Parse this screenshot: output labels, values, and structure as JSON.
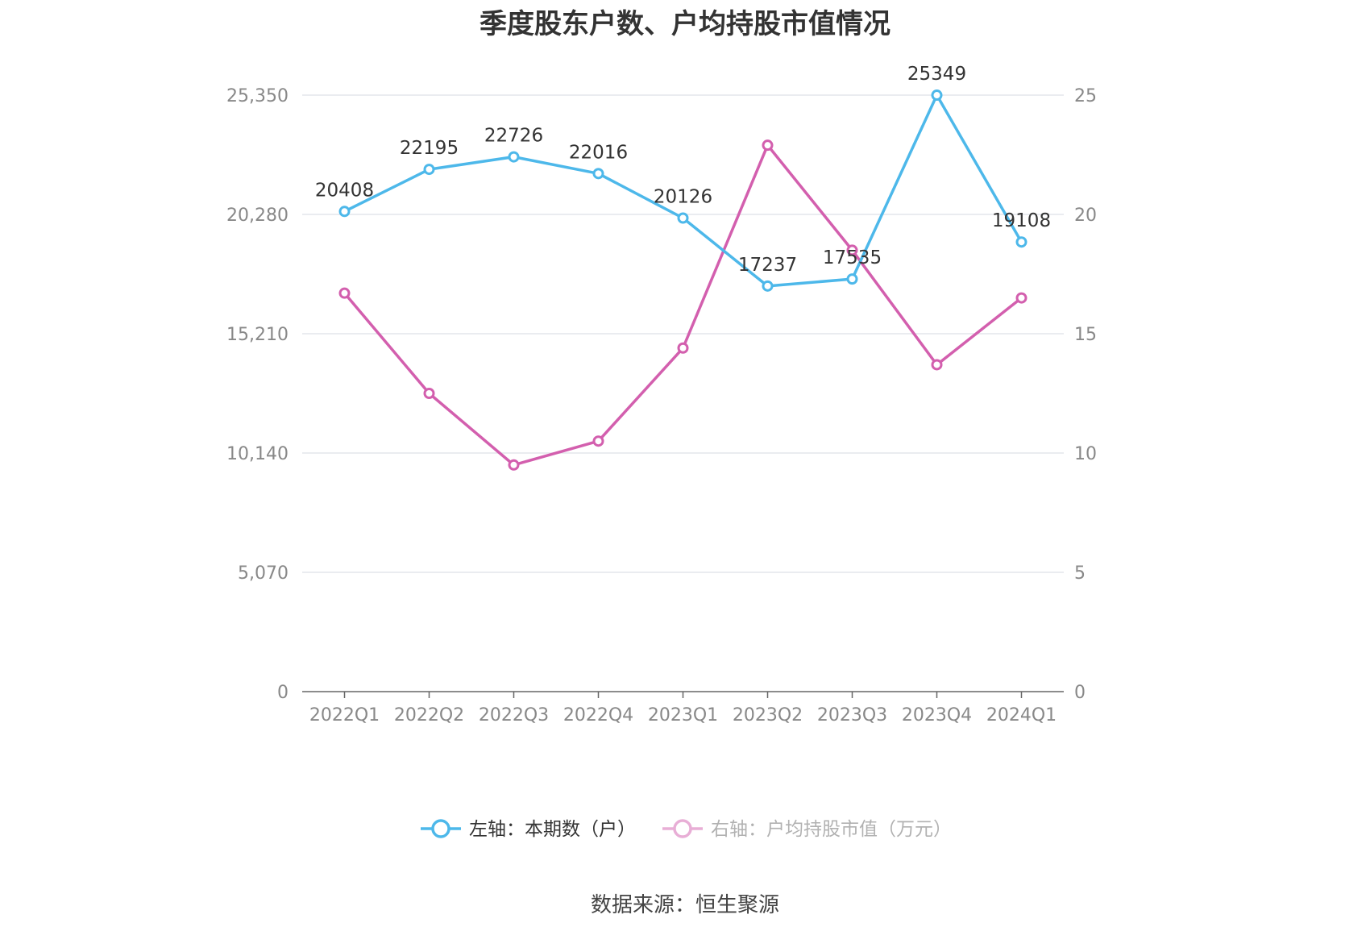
{
  "chart_data": {
    "type": "line",
    "title": "季度股东户数、户均持股市值情况",
    "categories": [
      "2022Q1",
      "2022Q2",
      "2022Q3",
      "2022Q4",
      "2023Q1",
      "2023Q2",
      "2023Q3",
      "2023Q4",
      "2024Q1"
    ],
    "left_axis": {
      "min": 0,
      "max": 25350,
      "ticks": [
        0,
        5070,
        10140,
        15210,
        20280,
        25350
      ],
      "tick_labels": [
        "0",
        "5,070",
        "10,140",
        "15,210",
        "20,280",
        "25,350"
      ]
    },
    "right_axis": {
      "min": 0,
      "max": 25,
      "ticks": [
        0,
        5,
        10,
        15,
        20,
        25
      ],
      "tick_labels": [
        "0",
        "5",
        "10",
        "15",
        "20",
        "25"
      ]
    },
    "series": [
      {
        "name": "左轴：本期数（户）",
        "axis": "left",
        "color": "#4db8ea",
        "values": [
          20408,
          22195,
          22726,
          22016,
          20126,
          17237,
          17535,
          25349,
          19108
        ],
        "labels": [
          "20408",
          "22195",
          "22726",
          "22016",
          "20126",
          "17237",
          "17535",
          "25349",
          "19108"
        ]
      },
      {
        "name": "右轴：户均持股市值（万元）",
        "axis": "right",
        "color": "#d35fae",
        "values": [
          16.7,
          12.5,
          9.5,
          10.5,
          14.4,
          22.9,
          18.5,
          13.7,
          16.5
        ]
      }
    ],
    "grid": true,
    "legend_position": "bottom-center"
  },
  "source": "数据来源：恒生聚源"
}
